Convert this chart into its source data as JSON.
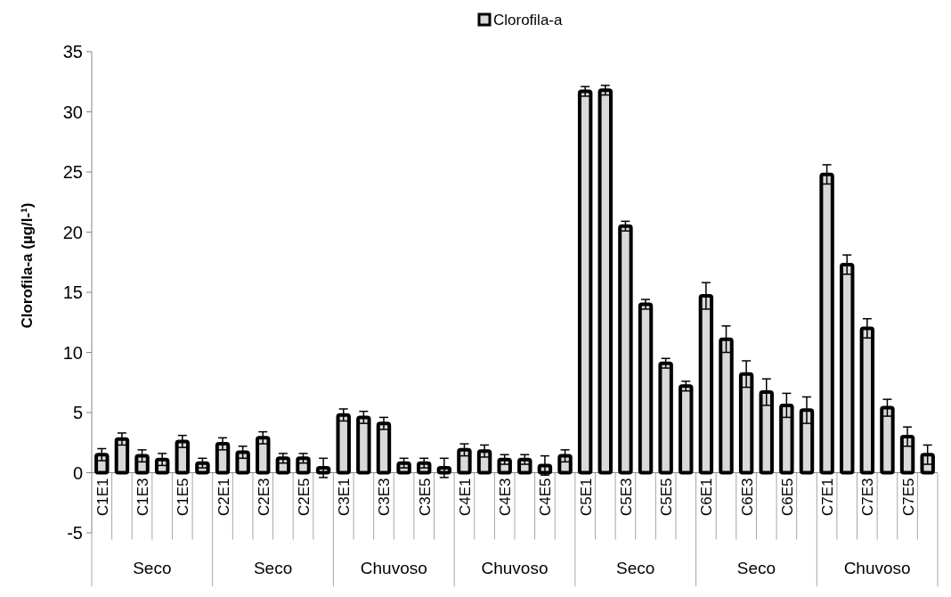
{
  "chart_data": {
    "type": "bar",
    "ylabel": "Clorofila-a (µg/l-¹)",
    "categories": [
      "C1E1",
      null,
      "C1E3",
      null,
      "C1E5",
      null,
      "C2E1",
      null,
      "C2E3",
      null,
      "C2E5",
      null,
      "C3E1",
      null,
      "C3E3",
      null,
      "C3E5",
      null,
      "C4E1",
      null,
      "C4E3",
      null,
      "C4E5",
      null,
      "C5E1",
      null,
      "C5E3",
      null,
      "C5E5",
      null,
      "C6E1",
      null,
      "C6E3",
      null,
      "C6E5",
      null,
      "C7E1",
      null,
      "C7E3",
      null,
      "C7E5",
      null
    ],
    "series": [
      {
        "name": "Clorofila-a",
        "color": "#d9d9d9",
        "values": [
          1.5,
          2.8,
          1.4,
          1.1,
          2.6,
          0.8,
          2.4,
          1.7,
          2.9,
          1.2,
          1.2,
          0.4,
          4.8,
          4.6,
          4.1,
          0.8,
          0.8,
          0.4,
          1.9,
          1.8,
          1.1,
          1.1,
          0.6,
          1.4,
          31.7,
          31.8,
          20.5,
          14.0,
          9.1,
          7.2,
          14.7,
          11.1,
          8.2,
          6.7,
          5.6,
          5.2,
          24.8,
          17.3,
          12.0,
          5.4,
          3.0,
          1.5
        ],
        "errors": [
          0.5,
          0.5,
          0.5,
          0.5,
          0.5,
          0.4,
          0.5,
          0.5,
          0.5,
          0.4,
          0.4,
          0.8,
          0.5,
          0.5,
          0.5,
          0.4,
          0.4,
          0.8,
          0.5,
          0.5,
          0.4,
          0.4,
          0.8,
          0.5,
          0.4,
          0.4,
          0.4,
          0.4,
          0.4,
          0.4,
          1.1,
          1.1,
          1.1,
          1.1,
          1.0,
          1.1,
          0.8,
          0.8,
          0.8,
          0.7,
          0.8,
          0.8
        ]
      }
    ],
    "annotations": [
      "Seco",
      "Seco",
      "Chuvoso",
      "Chuvoso",
      "Seco",
      "Seco",
      "Chuvoso"
    ],
    "ylim": [
      -5,
      35
    ],
    "yticks": [
      -5,
      0,
      5,
      10,
      15,
      20,
      25,
      30,
      35
    ],
    "legend": "top"
  }
}
